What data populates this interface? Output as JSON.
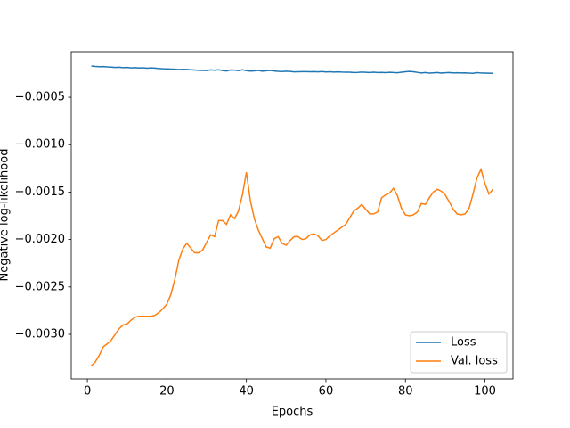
{
  "chart_data": {
    "type": "line",
    "xlabel": "Epochs",
    "ylabel": "Negative log-likelihood",
    "x": [
      1,
      2,
      3,
      4,
      5,
      6,
      7,
      8,
      9,
      10,
      11,
      12,
      13,
      14,
      15,
      16,
      17,
      18,
      19,
      20,
      21,
      22,
      23,
      24,
      25,
      26,
      27,
      28,
      29,
      30,
      31,
      32,
      33,
      34,
      35,
      36,
      37,
      38,
      39,
      40,
      41,
      42,
      43,
      44,
      45,
      46,
      47,
      48,
      49,
      50,
      51,
      52,
      53,
      54,
      55,
      56,
      57,
      58,
      59,
      60,
      61,
      62,
      63,
      64,
      65,
      66,
      67,
      68,
      69,
      70,
      71,
      72,
      73,
      74,
      75,
      76,
      77,
      78,
      79,
      80,
      81,
      82,
      83,
      84,
      85,
      86,
      87,
      88,
      89,
      90,
      91,
      92,
      93,
      94,
      95,
      96,
      97,
      98,
      99,
      100,
      101,
      102
    ],
    "series": [
      {
        "name": "Loss",
        "color": "#1f77b4",
        "values": [
          -0.00017,
          -0.000175,
          -0.000177,
          -0.000176,
          -0.00018,
          -0.000182,
          -0.000186,
          -0.000183,
          -0.000188,
          -0.000186,
          -0.00019,
          -0.000188,
          -0.000191,
          -0.000189,
          -0.000194,
          -0.00019,
          -0.000193,
          -0.000197,
          -0.0002,
          -0.000201,
          -0.000203,
          -0.000205,
          -0.000208,
          -0.000206,
          -0.000207,
          -0.00021,
          -0.000213,
          -0.000216,
          -0.000217,
          -0.000218,
          -0.000212,
          -0.000215,
          -0.00021,
          -0.000219,
          -0.000223,
          -0.000213,
          -0.000214,
          -0.00022,
          -0.00021,
          -0.00022,
          -0.000224,
          -0.000222,
          -0.000218,
          -0.000225,
          -0.000221,
          -0.000218,
          -0.000223,
          -0.000227,
          -0.000229,
          -0.000226,
          -0.000228,
          -0.000233,
          -0.000231,
          -0.00023,
          -0.00023,
          -0.000232,
          -0.00023,
          -0.000233,
          -0.000229,
          -0.000234,
          -0.000232,
          -0.000235,
          -0.000233,
          -0.000235,
          -0.000236,
          -0.000236,
          -0.00024,
          -0.000238,
          -0.000235,
          -0.000237,
          -0.00024,
          -0.000236,
          -0.00024,
          -0.000238,
          -0.000241,
          -0.000237,
          -0.00024,
          -0.000242,
          -0.000236,
          -0.000232,
          -0.000228,
          -0.000232,
          -0.000238,
          -0.000244,
          -0.00024,
          -0.000246,
          -0.000243,
          -0.00024,
          -0.000245,
          -0.000242,
          -0.00024,
          -0.000244,
          -0.000242,
          -0.000245,
          -0.000243,
          -0.000246,
          -0.000248,
          -0.000241,
          -0.000245,
          -0.000246,
          -0.000247,
          -0.000248
        ]
      },
      {
        "name": "Val. loss",
        "color": "#ff7f0e",
        "values": [
          -0.00333,
          -0.00329,
          -0.00322,
          -0.00313,
          -0.0031,
          -0.00306,
          -0.003,
          -0.00294,
          -0.0029,
          -0.00289,
          -0.00285,
          -0.00282,
          -0.00281,
          -0.00281,
          -0.00281,
          -0.00281,
          -0.0028,
          -0.00277,
          -0.00273,
          -0.00268,
          -0.00258,
          -0.00242,
          -0.00222,
          -0.0021,
          -0.00204,
          -0.00209,
          -0.00214,
          -0.00214,
          -0.00211,
          -0.00203,
          -0.00195,
          -0.00197,
          -0.0018,
          -0.0018,
          -0.00184,
          -0.00174,
          -0.00178,
          -0.0017,
          -0.00153,
          -0.00129,
          -0.00159,
          -0.00178,
          -0.0019,
          -0.00199,
          -0.00208,
          -0.00209,
          -0.00199,
          -0.00197,
          -0.00204,
          -0.00206,
          -0.00201,
          -0.00197,
          -0.00197,
          -0.002,
          -0.00199,
          -0.00195,
          -0.00194,
          -0.00196,
          -0.00201,
          -0.002,
          -0.00196,
          -0.00193,
          -0.0019,
          -0.00187,
          -0.00184,
          -0.00177,
          -0.0017,
          -0.00167,
          -0.00163,
          -0.00168,
          -0.00173,
          -0.00173,
          -0.00171,
          -0.00156,
          -0.00153,
          -0.00151,
          -0.00146,
          -0.00154,
          -0.00167,
          -0.00174,
          -0.00175,
          -0.00174,
          -0.00171,
          -0.00162,
          -0.00163,
          -0.00156,
          -0.0015,
          -0.00147,
          -0.00149,
          -0.00153,
          -0.0016,
          -0.00168,
          -0.00173,
          -0.00174,
          -0.00173,
          -0.00167,
          -0.00152,
          -0.00135,
          -0.00126,
          -0.00141,
          -0.00152,
          -0.00147
        ]
      }
    ],
    "xlim": [
      -4.05,
      107.05
    ],
    "xticks": [
      0,
      20,
      40,
      60,
      80,
      100
    ],
    "ylim": [
      -0.00347,
      -2e-05
    ],
    "yticks": [
      {
        "value": -0.0005,
        "label": "−0.0005"
      },
      {
        "value": -0.001,
        "label": "−0.0010"
      },
      {
        "value": -0.0015,
        "label": "−0.0015"
      },
      {
        "value": -0.002,
        "label": "−0.0020"
      },
      {
        "value": -0.0025,
        "label": "−0.0025"
      },
      {
        "value": -0.003,
        "label": "−0.0030"
      }
    ],
    "legend": "lower right",
    "grid": false
  }
}
